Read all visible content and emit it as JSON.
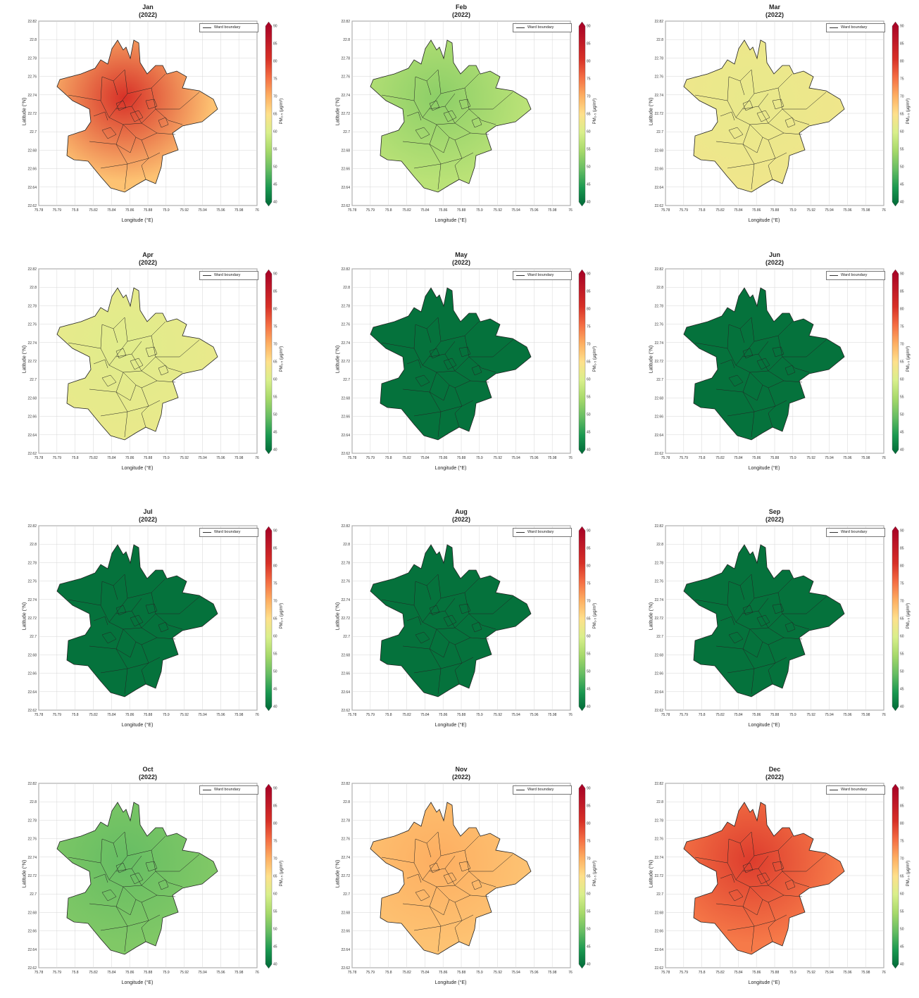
{
  "figure": {
    "year_label": "(2022)",
    "xlabel": "Longitude (°E)",
    "ylabel": "Latitude (°N)",
    "colorbar_label": "PM₂.₅ (µg/m³)",
    "legend_label": "Ward boundary"
  },
  "chart_data": {
    "type": "heatmap",
    "kind": "choropleth small multiples",
    "colormap": "green-yellow-red (RdYlGn reversed)",
    "colorbar_ticks": [
      40,
      45,
      50,
      55,
      60,
      65,
      70,
      75,
      80,
      85,
      90
    ],
    "colorbar_range": [
      40,
      90
    ],
    "y_ticks": [
      "22.62",
      "22.64",
      "22.66",
      "22.68",
      "22.7",
      "22.72",
      "22.74",
      "22.76",
      "22.78",
      "22.8",
      "22.82"
    ],
    "x_ticks": [
      "75.78",
      "75.79",
      "75.8",
      "75.82",
      "75.84",
      "75.86",
      "75.88",
      "75.9",
      "75.92",
      "75.94",
      "75.96",
      "75.98",
      "76"
    ],
    "grid": true,
    "legend_position": "top-right",
    "panels": [
      {
        "month": "Jan",
        "level": 68,
        "hotspot": 80
      },
      {
        "month": "Feb",
        "level": 57,
        "hotspot": 53
      },
      {
        "month": "Mar",
        "level": 63,
        "hotspot": 62
      },
      {
        "month": "Apr",
        "level": 62,
        "hotspot": 61
      },
      {
        "month": "May",
        "level": 41,
        "hotspot": 41
      },
      {
        "month": "Jun",
        "level": 41,
        "hotspot": 41
      },
      {
        "month": "Jul",
        "level": 41,
        "hotspot": 41
      },
      {
        "month": "Aug",
        "level": 41,
        "hotspot": 41
      },
      {
        "month": "Sep",
        "level": 41,
        "hotspot": 41
      },
      {
        "month": "Oct",
        "level": 52,
        "hotspot": 50
      },
      {
        "month": "Nov",
        "level": 68,
        "hotspot": 70
      },
      {
        "month": "Dec",
        "level": 74,
        "hotspot": 79
      }
    ]
  }
}
